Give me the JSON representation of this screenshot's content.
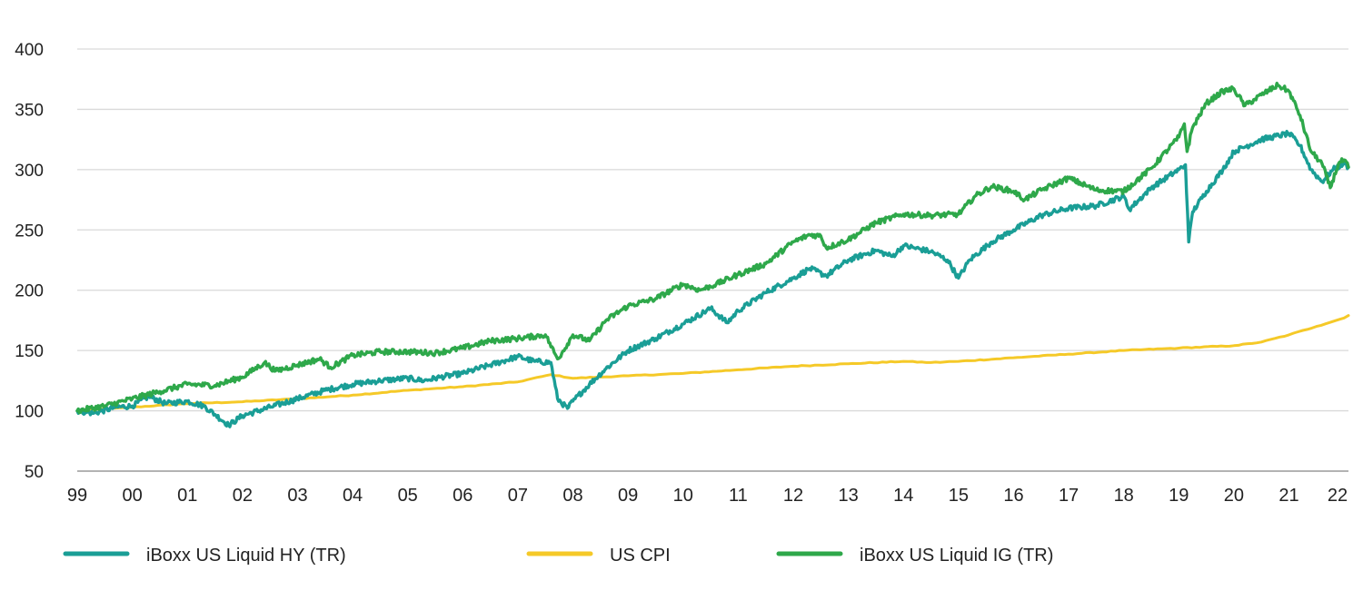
{
  "chart_data": {
    "type": "line",
    "title": "",
    "xlabel": "",
    "ylabel": "",
    "ylim": [
      50,
      400
    ],
    "yticks": [
      50,
      100,
      150,
      200,
      250,
      300,
      350,
      400
    ],
    "xlim": [
      1999.0,
      2022.08
    ],
    "x_tick_labels": [
      {
        "x": 1999,
        "label": "99"
      },
      {
        "x": 2000,
        "label": "00"
      },
      {
        "x": 2001,
        "label": "01"
      },
      {
        "x": 2002,
        "label": "02"
      },
      {
        "x": 2003,
        "label": "03"
      },
      {
        "x": 2004,
        "label": "04"
      },
      {
        "x": 2005,
        "label": "05"
      },
      {
        "x": 2006,
        "label": "06"
      },
      {
        "x": 2007,
        "label": "07"
      },
      {
        "x": 2008,
        "label": "08"
      },
      {
        "x": 2009,
        "label": "09"
      },
      {
        "x": 2010,
        "label": "10"
      },
      {
        "x": 2011,
        "label": "11"
      },
      {
        "x": 2012,
        "label": "12"
      },
      {
        "x": 2013,
        "label": "13"
      },
      {
        "x": 2014,
        "label": "14"
      },
      {
        "x": 2015,
        "label": "15"
      },
      {
        "x": 2016,
        "label": "16"
      },
      {
        "x": 2017,
        "label": "17"
      },
      {
        "x": 2018,
        "label": "18"
      },
      {
        "x": 2019,
        "label": "19"
      },
      {
        "x": 2020,
        "label": "20"
      },
      {
        "x": 2021,
        "label": "21"
      },
      {
        "x": 2022,
        "label": "22"
      }
    ],
    "grid": "horizontal",
    "legend_position": "bottom",
    "series": [
      {
        "name": "US CPI",
        "color": "#f5c928",
        "points": [
          [
            1999.0,
            100
          ],
          [
            2000.0,
            103
          ],
          [
            2001.0,
            106
          ],
          [
            2002.0,
            107.5
          ],
          [
            2003.0,
            110
          ],
          [
            2004.0,
            113
          ],
          [
            2005.0,
            117
          ],
          [
            2006.0,
            120
          ],
          [
            2007.0,
            124
          ],
          [
            2007.6,
            130
          ],
          [
            2008.0,
            127
          ],
          [
            2009.0,
            129
          ],
          [
            2010.0,
            131
          ],
          [
            2011.0,
            134
          ],
          [
            2012.0,
            137
          ],
          [
            2013.0,
            139
          ],
          [
            2014.0,
            141
          ],
          [
            2014.5,
            140
          ],
          [
            2015.0,
            141
          ],
          [
            2016.0,
            144
          ],
          [
            2017.0,
            147
          ],
          [
            2018.0,
            150
          ],
          [
            2019.0,
            152
          ],
          [
            2020.0,
            154
          ],
          [
            2020.5,
            157
          ],
          [
            2021.0,
            163
          ],
          [
            2021.5,
            170
          ],
          [
            2022.0,
            177
          ],
          [
            2022.08,
            179
          ]
        ]
      },
      {
        "name": "iBoxx US Liquid HY (TR)",
        "color": "#1a9e96",
        "points": [
          [
            1999.0,
            100
          ],
          [
            1999.3,
            98
          ],
          [
            1999.7,
            103
          ],
          [
            2000.0,
            104
          ],
          [
            2000.3,
            112
          ],
          [
            2000.6,
            106
          ],
          [
            2001.0,
            108
          ],
          [
            2001.3,
            104
          ],
          [
            2001.5,
            97
          ],
          [
            2001.75,
            88
          ],
          [
            2002.0,
            96
          ],
          [
            2002.5,
            103
          ],
          [
            2003.0,
            110
          ],
          [
            2003.5,
            117
          ],
          [
            2004.0,
            122
          ],
          [
            2004.5,
            125
          ],
          [
            2005.0,
            127
          ],
          [
            2005.3,
            125
          ],
          [
            2005.6,
            128
          ],
          [
            2006.0,
            131
          ],
          [
            2006.5,
            138
          ],
          [
            2007.0,
            145
          ],
          [
            2007.3,
            141
          ],
          [
            2007.6,
            140
          ],
          [
            2007.72,
            110
          ],
          [
            2007.9,
            102
          ],
          [
            2008.0,
            108
          ],
          [
            2008.3,
            122
          ],
          [
            2008.6,
            135
          ],
          [
            2009.0,
            150
          ],
          [
            2009.5,
            160
          ],
          [
            2010.0,
            172
          ],
          [
            2010.5,
            185
          ],
          [
            2010.8,
            173
          ],
          [
            2011.0,
            183
          ],
          [
            2011.5,
            198
          ],
          [
            2012.0,
            210
          ],
          [
            2012.3,
            218
          ],
          [
            2012.6,
            212
          ],
          [
            2013.0,
            225
          ],
          [
            2013.5,
            233
          ],
          [
            2013.8,
            228
          ],
          [
            2014.0,
            237
          ],
          [
            2014.5,
            232
          ],
          [
            2014.8,
            225
          ],
          [
            2015.0,
            210
          ],
          [
            2015.2,
            225
          ],
          [
            2015.6,
            240
          ],
          [
            2016.0,
            250
          ],
          [
            2016.5,
            262
          ],
          [
            2017.0,
            268
          ],
          [
            2017.5,
            270
          ],
          [
            2018.0,
            278
          ],
          [
            2018.1,
            267
          ],
          [
            2018.5,
            285
          ],
          [
            2019.0,
            300
          ],
          [
            2019.12,
            304
          ],
          [
            2019.18,
            240
          ],
          [
            2019.25,
            265
          ],
          [
            2019.5,
            282
          ],
          [
            2019.8,
            300
          ],
          [
            2020.0,
            315
          ],
          [
            2020.5,
            325
          ],
          [
            2021.0,
            330
          ],
          [
            2021.2,
            320
          ],
          [
            2021.4,
            300
          ],
          [
            2021.6,
            290
          ],
          [
            2021.8,
            300
          ],
          [
            2022.0,
            305
          ],
          [
            2022.08,
            302
          ]
        ]
      },
      {
        "name": "iBoxx US Liquid IG (TR)",
        "color": "#2ea84a",
        "points": [
          [
            1999.0,
            100
          ],
          [
            1999.5,
            104
          ],
          [
            2000.0,
            110
          ],
          [
            2000.5,
            116
          ],
          [
            2001.0,
            122
          ],
          [
            2001.5,
            121
          ],
          [
            2002.0,
            128
          ],
          [
            2002.4,
            140
          ],
          [
            2002.6,
            133
          ],
          [
            2003.0,
            138
          ],
          [
            2003.4,
            143
          ],
          [
            2003.6,
            136
          ],
          [
            2004.0,
            146
          ],
          [
            2004.5,
            149
          ],
          [
            2005.0,
            149
          ],
          [
            2005.5,
            148
          ],
          [
            2006.0,
            152
          ],
          [
            2006.5,
            158
          ],
          [
            2007.0,
            160
          ],
          [
            2007.5,
            163
          ],
          [
            2007.72,
            143
          ],
          [
            2007.8,
            148
          ],
          [
            2008.0,
            163
          ],
          [
            2008.3,
            158
          ],
          [
            2008.6,
            175
          ],
          [
            2009.0,
            187
          ],
          [
            2009.5,
            193
          ],
          [
            2010.0,
            205
          ],
          [
            2010.3,
            200
          ],
          [
            2010.6,
            205
          ],
          [
            2011.0,
            213
          ],
          [
            2011.5,
            222
          ],
          [
            2012.0,
            240
          ],
          [
            2012.3,
            246
          ],
          [
            2012.5,
            245
          ],
          [
            2012.6,
            235
          ],
          [
            2013.0,
            242
          ],
          [
            2013.5,
            256
          ],
          [
            2014.0,
            263
          ],
          [
            2014.5,
            262
          ],
          [
            2015.0,
            263
          ],
          [
            2015.3,
            278
          ],
          [
            2015.6,
            286
          ],
          [
            2016.0,
            282
          ],
          [
            2016.2,
            275
          ],
          [
            2016.5,
            283
          ],
          [
            2017.0,
            293
          ],
          [
            2017.5,
            283
          ],
          [
            2018.0,
            282
          ],
          [
            2018.5,
            301
          ],
          [
            2019.0,
            327
          ],
          [
            2019.1,
            338
          ],
          [
            2019.15,
            315
          ],
          [
            2019.25,
            335
          ],
          [
            2019.5,
            355
          ],
          [
            2019.8,
            365
          ],
          [
            2020.0,
            367
          ],
          [
            2020.2,
            353
          ],
          [
            2020.5,
            362
          ],
          [
            2020.8,
            370
          ],
          [
            2021.0,
            365
          ],
          [
            2021.2,
            345
          ],
          [
            2021.4,
            315
          ],
          [
            2021.6,
            305
          ],
          [
            2021.75,
            285
          ],
          [
            2021.9,
            305
          ],
          [
            2022.0,
            308
          ],
          [
            2022.08,
            302
          ]
        ]
      }
    ]
  }
}
